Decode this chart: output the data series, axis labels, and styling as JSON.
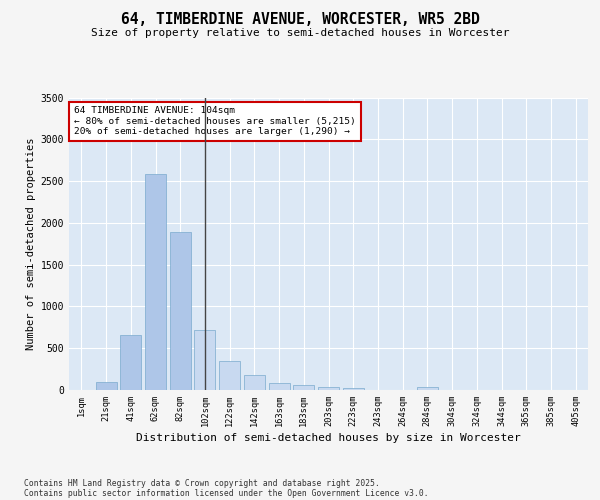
{
  "title1": "64, TIMBERDINE AVENUE, WORCESTER, WR5 2BD",
  "title2": "Size of property relative to semi-detached houses in Worcester",
  "xlabel": "Distribution of semi-detached houses by size in Worcester",
  "ylabel": "Number of semi-detached properties",
  "categories": [
    "1sqm",
    "21sqm",
    "41sqm",
    "62sqm",
    "82sqm",
    "102sqm",
    "122sqm",
    "142sqm",
    "163sqm",
    "183sqm",
    "203sqm",
    "223sqm",
    "243sqm",
    "264sqm",
    "284sqm",
    "304sqm",
    "324sqm",
    "344sqm",
    "365sqm",
    "385sqm",
    "405sqm"
  ],
  "values": [
    0,
    100,
    660,
    2580,
    1890,
    720,
    350,
    175,
    80,
    60,
    40,
    20,
    5,
    0,
    30,
    0,
    0,
    0,
    0,
    0,
    0
  ],
  "bar_color_left": "#aec6e8",
  "bar_color_right": "#c8d9f0",
  "bar_edge_color": "#7aaace",
  "marker_index": 5,
  "marker_label": "64 TIMBERDINE AVENUE: 104sqm",
  "annotation_line1": "← 80% of semi-detached houses are smaller (5,215)",
  "annotation_line2": "20% of semi-detached houses are larger (1,290) →",
  "annotation_box_color": "#ffffff",
  "annotation_box_edge": "#cc0000",
  "marker_line_color": "#444444",
  "bg_color": "#dce8f5",
  "fig_bg_color": "#f5f5f5",
  "ylim": [
    0,
    3500
  ],
  "footer1": "Contains HM Land Registry data © Crown copyright and database right 2025.",
  "footer2": "Contains public sector information licensed under the Open Government Licence v3.0."
}
